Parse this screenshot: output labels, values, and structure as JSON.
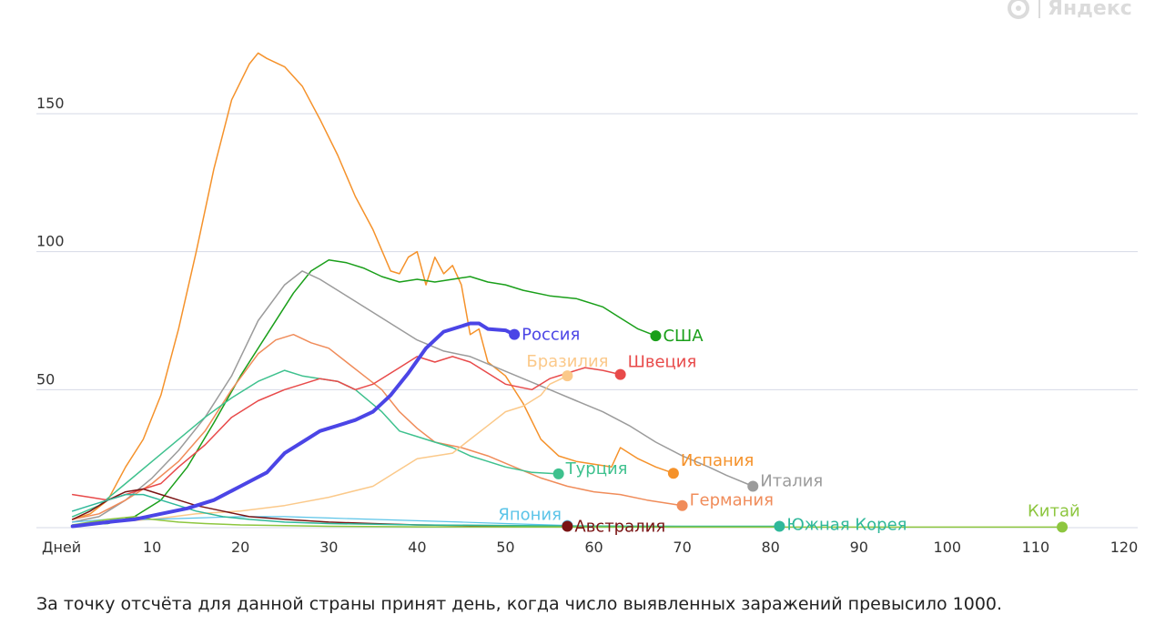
{
  "branding": {
    "logo_text": "Яндекс",
    "logo_icon": "yandex-circle-icon"
  },
  "footnote": "За точку отсчёта для данной страны принят день, когда число выявленных заражений превысило 1000.",
  "chart_data": {
    "type": "line",
    "xlabel": "Дней",
    "x_ticks": [
      10,
      20,
      30,
      40,
      50,
      60,
      70,
      80,
      90,
      100,
      110,
      120
    ],
    "y_ticks": [
      50,
      100,
      150
    ],
    "xlim": [
      0,
      120
    ],
    "ylim": [
      0,
      170
    ],
    "grid": true,
    "legend": "end-of-line labels",
    "series": [
      {
        "name": "Испания",
        "color": "#f5922b",
        "width": 1.5,
        "points": [
          [
            1,
            3
          ],
          [
            3,
            5
          ],
          [
            5,
            10
          ],
          [
            7,
            22
          ],
          [
            9,
            32
          ],
          [
            11,
            48
          ],
          [
            13,
            72
          ],
          [
            15,
            100
          ],
          [
            17,
            130
          ],
          [
            19,
            155
          ],
          [
            21,
            168
          ],
          [
            22,
            172
          ],
          [
            23,
            170
          ],
          [
            25,
            167
          ],
          [
            27,
            160
          ],
          [
            29,
            148
          ],
          [
            31,
            135
          ],
          [
            33,
            120
          ],
          [
            35,
            108
          ],
          [
            37,
            93
          ],
          [
            38,
            92
          ],
          [
            39,
            98
          ],
          [
            40,
            100
          ],
          [
            41,
            88
          ],
          [
            42,
            98
          ],
          [
            43,
            92
          ],
          [
            44,
            95
          ],
          [
            45,
            88
          ],
          [
            46,
            70
          ],
          [
            47,
            72
          ],
          [
            48,
            60
          ],
          [
            50,
            55
          ],
          [
            52,
            45
          ],
          [
            54,
            32
          ],
          [
            56,
            26
          ],
          [
            58,
            24
          ],
          [
            60,
            23
          ],
          [
            62,
            22
          ],
          [
            63,
            29
          ],
          [
            65,
            25
          ],
          [
            67,
            22
          ],
          [
            69,
            19.7
          ]
        ],
        "end_marker": true,
        "label_dx": 8,
        "label_dy": -14
      },
      {
        "name": "США",
        "color": "#1a9f1a",
        "width": 1.5,
        "points": [
          [
            1,
            1
          ],
          [
            5,
            1.5
          ],
          [
            8,
            4
          ],
          [
            11,
            10
          ],
          [
            14,
            22
          ],
          [
            17,
            38
          ],
          [
            20,
            55
          ],
          [
            23,
            70
          ],
          [
            26,
            85
          ],
          [
            28,
            93
          ],
          [
            30,
            97
          ],
          [
            32,
            96
          ],
          [
            34,
            94
          ],
          [
            36,
            91
          ],
          [
            38,
            89
          ],
          [
            40,
            90
          ],
          [
            42,
            89
          ],
          [
            44,
            90
          ],
          [
            46,
            91
          ],
          [
            48,
            89
          ],
          [
            50,
            88
          ],
          [
            52,
            86
          ],
          [
            55,
            84
          ],
          [
            58,
            83
          ],
          [
            61,
            80
          ],
          [
            63,
            76
          ],
          [
            65,
            72
          ],
          [
            67,
            69.5
          ]
        ],
        "end_marker": true,
        "label_dx": 8,
        "label_dy": 0
      },
      {
        "name": "Италия",
        "color": "#9b9b9b",
        "width": 1.5,
        "points": [
          [
            1,
            2
          ],
          [
            4,
            4
          ],
          [
            7,
            10
          ],
          [
            10,
            18
          ],
          [
            13,
            28
          ],
          [
            16,
            40
          ],
          [
            19,
            55
          ],
          [
            22,
            75
          ],
          [
            25,
            88
          ],
          [
            27,
            93
          ],
          [
            29,
            90
          ],
          [
            31,
            86
          ],
          [
            33,
            82
          ],
          [
            35,
            78
          ],
          [
            38,
            72
          ],
          [
            40,
            68
          ],
          [
            43,
            64
          ],
          [
            46,
            62
          ],
          [
            49,
            58
          ],
          [
            52,
            54
          ],
          [
            55,
            50
          ],
          [
            58,
            46
          ],
          [
            61,
            42
          ],
          [
            64,
            37
          ],
          [
            67,
            31
          ],
          [
            70,
            26
          ],
          [
            73,
            22
          ],
          [
            75,
            19
          ],
          [
            78,
            15
          ]
        ],
        "end_marker": true,
        "label_dx": 8,
        "label_dy": -6
      },
      {
        "name": "Германия",
        "color": "#f08c5a",
        "width": 1.5,
        "points": [
          [
            1,
            3
          ],
          [
            4,
            5
          ],
          [
            7,
            10
          ],
          [
            10,
            16
          ],
          [
            13,
            24
          ],
          [
            16,
            35
          ],
          [
            19,
            50
          ],
          [
            22,
            63
          ],
          [
            24,
            68
          ],
          [
            26,
            70
          ],
          [
            28,
            67
          ],
          [
            30,
            65
          ],
          [
            32,
            60
          ],
          [
            34,
            55
          ],
          [
            36,
            50
          ],
          [
            38,
            42
          ],
          [
            40,
            36
          ],
          [
            42,
            31
          ],
          [
            45,
            29
          ],
          [
            48,
            26
          ],
          [
            51,
            22
          ],
          [
            54,
            18
          ],
          [
            57,
            15
          ],
          [
            60,
            13
          ],
          [
            63,
            12
          ],
          [
            66,
            10
          ],
          [
            68,
            9
          ],
          [
            70,
            8
          ]
        ],
        "end_marker": true,
        "label_dx": 8,
        "label_dy": -6
      },
      {
        "name": "Турция",
        "color": "#3ec18e",
        "width": 1.5,
        "points": [
          [
            1,
            4
          ],
          [
            4,
            8
          ],
          [
            7,
            16
          ],
          [
            10,
            24
          ],
          [
            13,
            32
          ],
          [
            16,
            40
          ],
          [
            19,
            47
          ],
          [
            22,
            53
          ],
          [
            25,
            57
          ],
          [
            27,
            55
          ],
          [
            29,
            54
          ],
          [
            31,
            53
          ],
          [
            33,
            50
          ],
          [
            36,
            42
          ],
          [
            38,
            35
          ],
          [
            40,
            33
          ],
          [
            42,
            31
          ],
          [
            44,
            29
          ],
          [
            46,
            26
          ],
          [
            48,
            24
          ],
          [
            50,
            22
          ],
          [
            53,
            20
          ],
          [
            56,
            19.5
          ]
        ],
        "end_marker": true,
        "label_dx": 8,
        "label_dy": -6
      },
      {
        "name": "Швеция",
        "color": "#e84a4a",
        "width": 1.5,
        "points": [
          [
            1,
            12
          ],
          [
            3,
            11
          ],
          [
            5,
            10
          ],
          [
            7,
            12
          ],
          [
            9,
            14
          ],
          [
            11,
            16
          ],
          [
            13,
            22
          ],
          [
            16,
            30
          ],
          [
            19,
            40
          ],
          [
            22,
            46
          ],
          [
            25,
            50
          ],
          [
            27,
            52
          ],
          [
            29,
            54
          ],
          [
            31,
            53
          ],
          [
            33,
            50
          ],
          [
            35,
            52
          ],
          [
            38,
            58
          ],
          [
            40,
            62
          ],
          [
            42,
            60
          ],
          [
            44,
            62
          ],
          [
            46,
            60
          ],
          [
            48,
            56
          ],
          [
            50,
            52
          ],
          [
            53,
            50
          ],
          [
            55,
            54
          ],
          [
            57,
            56
          ],
          [
            59,
            58
          ],
          [
            61,
            57
          ],
          [
            63,
            55.5
          ]
        ],
        "end_marker": true,
        "label_dx": 8,
        "label_dy": -14
      },
      {
        "name": "Бразилия",
        "color": "#fbc98a",
        "width": 1.5,
        "points": [
          [
            1,
            1
          ],
          [
            5,
            2
          ],
          [
            10,
            3
          ],
          [
            15,
            5
          ],
          [
            20,
            6
          ],
          [
            25,
            8
          ],
          [
            30,
            11
          ],
          [
            35,
            15
          ],
          [
            40,
            25
          ],
          [
            44,
            27
          ],
          [
            46,
            32
          ],
          [
            48,
            37
          ],
          [
            50,
            42
          ],
          [
            52,
            44
          ],
          [
            54,
            48
          ],
          [
            55,
            52
          ],
          [
            57,
            55
          ]
        ],
        "end_marker": true,
        "label_dx": -45,
        "label_dy": -16
      },
      {
        "name": "Япония",
        "color": "#5bc4e8",
        "width": 1.2,
        "points": [
          [
            1,
            2
          ],
          [
            5,
            3
          ],
          [
            10,
            3
          ],
          [
            15,
            3.5
          ],
          [
            20,
            4
          ],
          [
            25,
            4
          ],
          [
            30,
            3.5
          ],
          [
            35,
            3
          ],
          [
            40,
            2.5
          ],
          [
            45,
            2
          ],
          [
            50,
            1.5
          ],
          [
            55,
            1
          ],
          [
            57,
            0.8
          ]
        ],
        "end_marker": true,
        "label_dx": -76,
        "label_dy": -12
      },
      {
        "name": "Австралия",
        "color": "#7a1414",
        "width": 1.5,
        "points": [
          [
            1,
            3
          ],
          [
            3,
            6
          ],
          [
            5,
            10
          ],
          [
            7,
            13
          ],
          [
            9,
            14
          ],
          [
            11,
            12
          ],
          [
            13,
            10
          ],
          [
            15,
            8
          ],
          [
            18,
            6
          ],
          [
            21,
            4
          ],
          [
            25,
            3
          ],
          [
            30,
            2
          ],
          [
            35,
            1.5
          ],
          [
            40,
            1
          ],
          [
            45,
            0.8
          ],
          [
            50,
            0.6
          ],
          [
            57,
            0.5
          ]
        ],
        "end_marker": true,
        "label_dx": 8,
        "label_dy": 0
      },
      {
        "name": "Южная Корея",
        "color": "#2fb89a",
        "width": 1.5,
        "points": [
          [
            1,
            6
          ],
          [
            3,
            8
          ],
          [
            5,
            10
          ],
          [
            7,
            12
          ],
          [
            9,
            12
          ],
          [
            11,
            10
          ],
          [
            13,
            8
          ],
          [
            15,
            6
          ],
          [
            18,
            4
          ],
          [
            21,
            3
          ],
          [
            25,
            2
          ],
          [
            30,
            1.5
          ],
          [
            40,
            1
          ],
          [
            50,
            0.8
          ],
          [
            60,
            0.6
          ],
          [
            70,
            0.5
          ],
          [
            81,
            0.5
          ]
        ],
        "end_marker": true,
        "label_dx": 8,
        "label_dy": -2
      },
      {
        "name": "Китай",
        "color": "#8dc63f",
        "width": 1.5,
        "points": [
          [
            1,
            1
          ],
          [
            3,
            2
          ],
          [
            5,
            3
          ],
          [
            8,
            4
          ],
          [
            10,
            3
          ],
          [
            13,
            2
          ],
          [
            16,
            1.5
          ],
          [
            20,
            1
          ],
          [
            30,
            0.5
          ],
          [
            40,
            0.3
          ],
          [
            60,
            0.2
          ],
          [
            80,
            0.2
          ],
          [
            100,
            0.2
          ],
          [
            113,
            0.2
          ]
        ],
        "end_marker": true,
        "label_dx": -38,
        "label_dy": -18
      },
      {
        "name": "Россия",
        "color": "#4b45e6",
        "width": 4,
        "points": [
          [
            1,
            0.5
          ],
          [
            5,
            2
          ],
          [
            8,
            3
          ],
          [
            11,
            5
          ],
          [
            14,
            7
          ],
          [
            17,
            10
          ],
          [
            20,
            15
          ],
          [
            23,
            20
          ],
          [
            25,
            27
          ],
          [
            27,
            31
          ],
          [
            29,
            35
          ],
          [
            31,
            37
          ],
          [
            33,
            39
          ],
          [
            35,
            42
          ],
          [
            37,
            48
          ],
          [
            39,
            56
          ],
          [
            41,
            65
          ],
          [
            43,
            71
          ],
          [
            45,
            73
          ],
          [
            46,
            74
          ],
          [
            47,
            74
          ],
          [
            48,
            72
          ],
          [
            50,
            71.5
          ],
          [
            51,
            70
          ]
        ],
        "end_marker": true,
        "label_dx": 8,
        "label_dy": 0
      }
    ]
  }
}
